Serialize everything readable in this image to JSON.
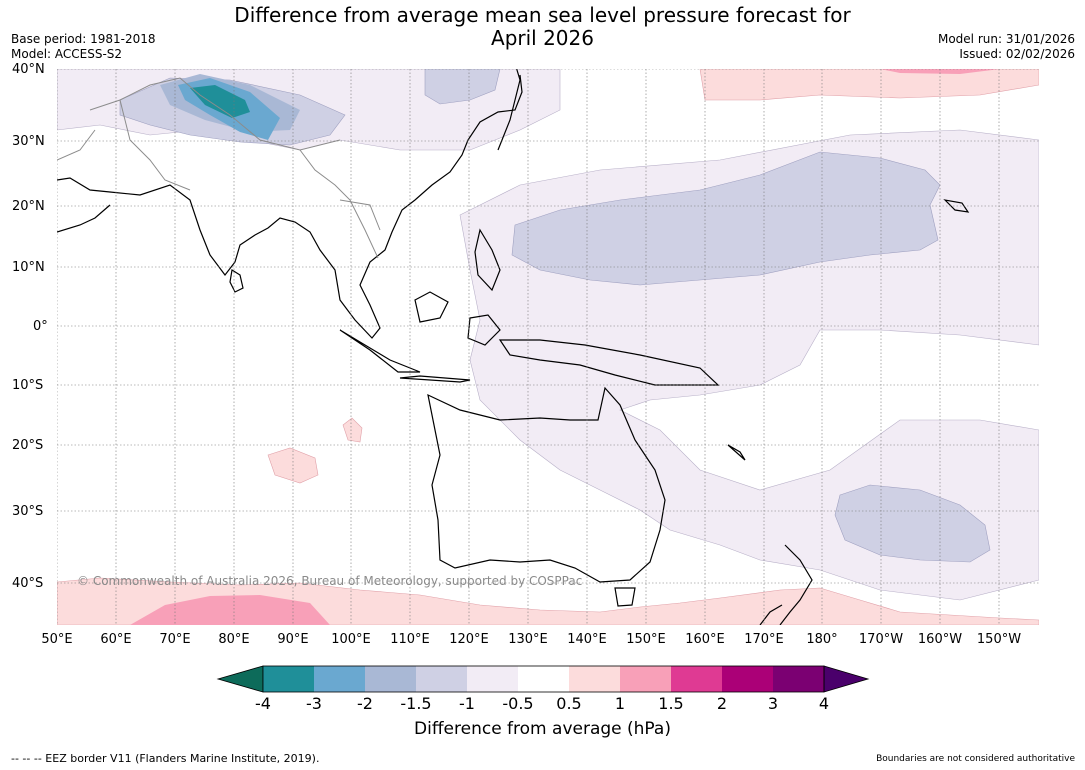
{
  "title_line1": "Difference from average mean sea level pressure forecast for",
  "title_line2": "April 2026",
  "meta_left": [
    "Base period: 1981-2018",
    "Model: ACCESS-S2"
  ],
  "meta_right": [
    "Model run: 31/01/2026",
    "Issued: 02/02/2026"
  ],
  "lat_labels": [
    "40°N",
    "30°N",
    "20°N",
    "10°N",
    "0°",
    "10°S",
    "20°S",
    "30°S",
    "40°S"
  ],
  "lon_labels": [
    "50°E",
    "60°E",
    "70°E",
    "80°E",
    "90°E",
    "100°E",
    "110°E",
    "120°E",
    "130°E",
    "140°E",
    "150°E",
    "160°E",
    "170°E",
    "180°",
    "170°W",
    "160°W",
    "150°W"
  ],
  "copyright": "© Commonwealth of Australia 2026, Bureau of Meteorology, supported by COSPPac",
  "colorbar": {
    "title": "Difference from average (hPa)",
    "ticks": [
      "-4",
      "-3",
      "-2",
      "-1.5",
      "-1",
      "-0.5",
      "0.5",
      "1",
      "1.5",
      "2",
      "3",
      "4"
    ],
    "colors": {
      "lt_minus4": "#0d6b5a",
      "minus4_minus3": "#1f8f99",
      "minus3_minus2": "#6aa8d0",
      "minus2_minus1_5": "#a9b8d5",
      "minus1_5_minus1": "#cfd0e4",
      "minus1_minus0_5": "#f2ecf5",
      "minus0_5_0_5": "#ffffff",
      "p0_5_p1": "#fcdcdc",
      "p1_p1_5": "#f8a0b8",
      "p1_5_p2": "#df3a93",
      "p2_p3": "#ab0077",
      "p3_p4": "#7b0072",
      "gt_p4": "#4a006b"
    }
  },
  "footer_left": "--  --  -- EEZ border V11 (Flanders Marine Institute, 2019).",
  "footer_right": "Boundaries are not considered authoritative"
}
